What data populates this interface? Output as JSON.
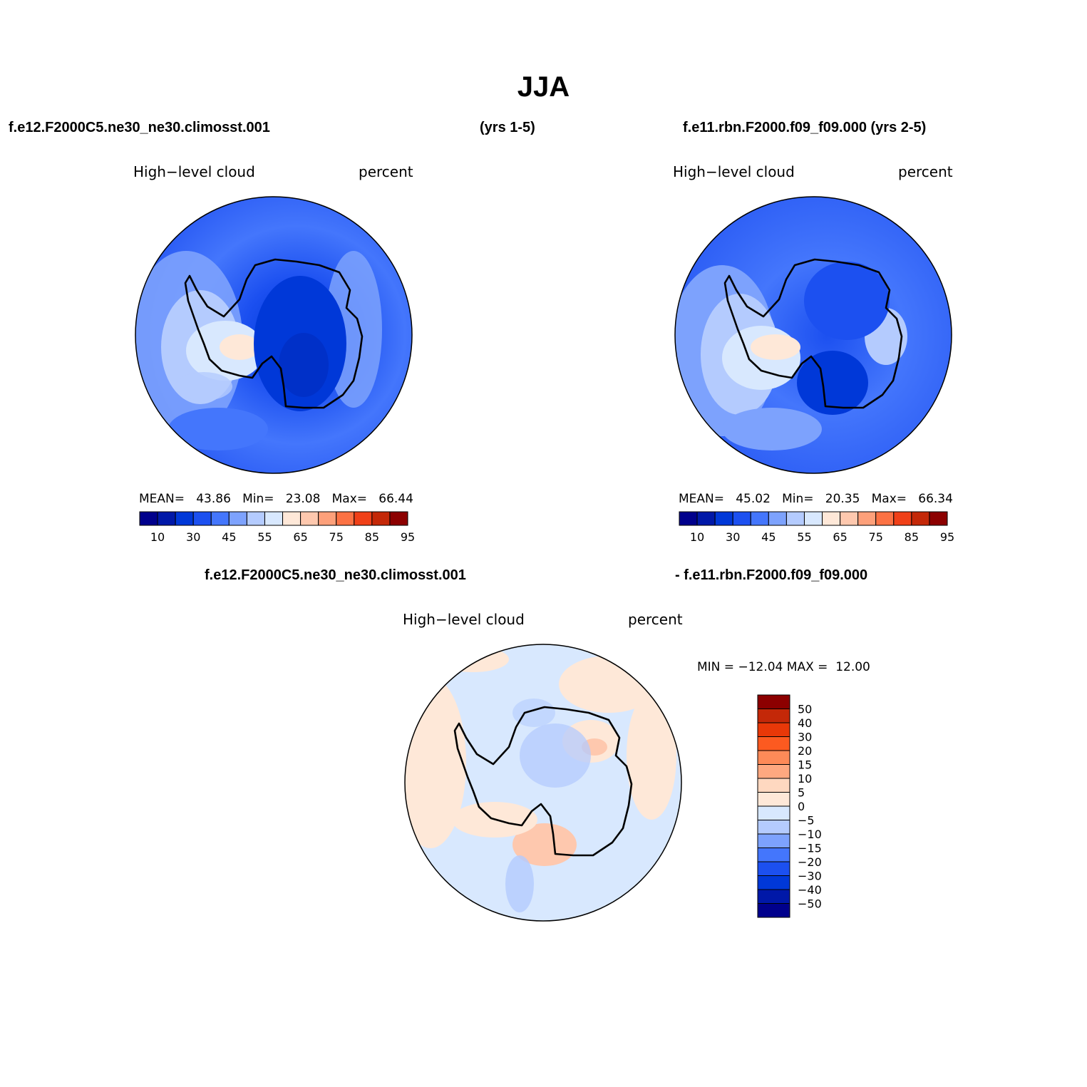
{
  "figure": {
    "title": "JJA",
    "case1_title": "f.e12.F2000C5.ne30_ne30.climosst.001",
    "case1_years": "(yrs 1-5)",
    "case2_title": "f.e11.rbn.F2000.f09_f09.000 (yrs 2-5)",
    "diff_title_left": "f.e12.F2000C5.ne30_ne30.climosst.001",
    "diff_title_right": "- f.e11.rbn.F2000.f09_f09.000"
  },
  "panels": [
    {
      "variable": "High−level cloud",
      "units": "percent",
      "stats": {
        "mean_label": "MEAN=",
        "mean": "43.86",
        "min_label": "Min=",
        "min": "23.08",
        "max_label": "Max=",
        "max": "66.44"
      }
    },
    {
      "variable": "High−level cloud",
      "units": "percent",
      "stats": {
        "mean_label": "MEAN=",
        "mean": "45.02",
        "min_label": "Min=",
        "min": "20.35",
        "max_label": "Max=",
        "max": "66.34"
      }
    },
    {
      "variable": "High−level cloud",
      "units": "percent",
      "stats": {
        "min_label": "MIN =",
        "min": "−12.04",
        "max_label": "MAX =",
        "max": "12.00"
      }
    }
  ],
  "colorbar_abs": {
    "colors": [
      "#00008c",
      "#0018a8",
      "#0038d8",
      "#1c50f0",
      "#4476fc",
      "#7da2fd",
      "#b4cbfe",
      "#d8e8fe",
      "#fee8d8",
      "#fec8ae",
      "#fda07a",
      "#fc7244",
      "#f04018",
      "#c42808",
      "#8c0000"
    ],
    "tick_labels": [
      "10",
      "30",
      "45",
      "55",
      "65",
      "75",
      "85",
      "95"
    ]
  },
  "colorbar_diff": {
    "colors": [
      "#8c0000",
      "#c42808",
      "#e83808",
      "#fc5a20",
      "#fd8a58",
      "#fea880",
      "#fed8c0",
      "#fee8d8",
      "#d8e8fe",
      "#b4cbfe",
      "#7da2fd",
      "#4476fc",
      "#1c50f0",
      "#0038d8",
      "#0018a8",
      "#00008c"
    ],
    "tick_labels": [
      "50",
      "40",
      "30",
      "20",
      "15",
      "10",
      "5",
      "0",
      "−5",
      "−10",
      "−15",
      "−20",
      "−30",
      "−40",
      "−50"
    ]
  }
}
